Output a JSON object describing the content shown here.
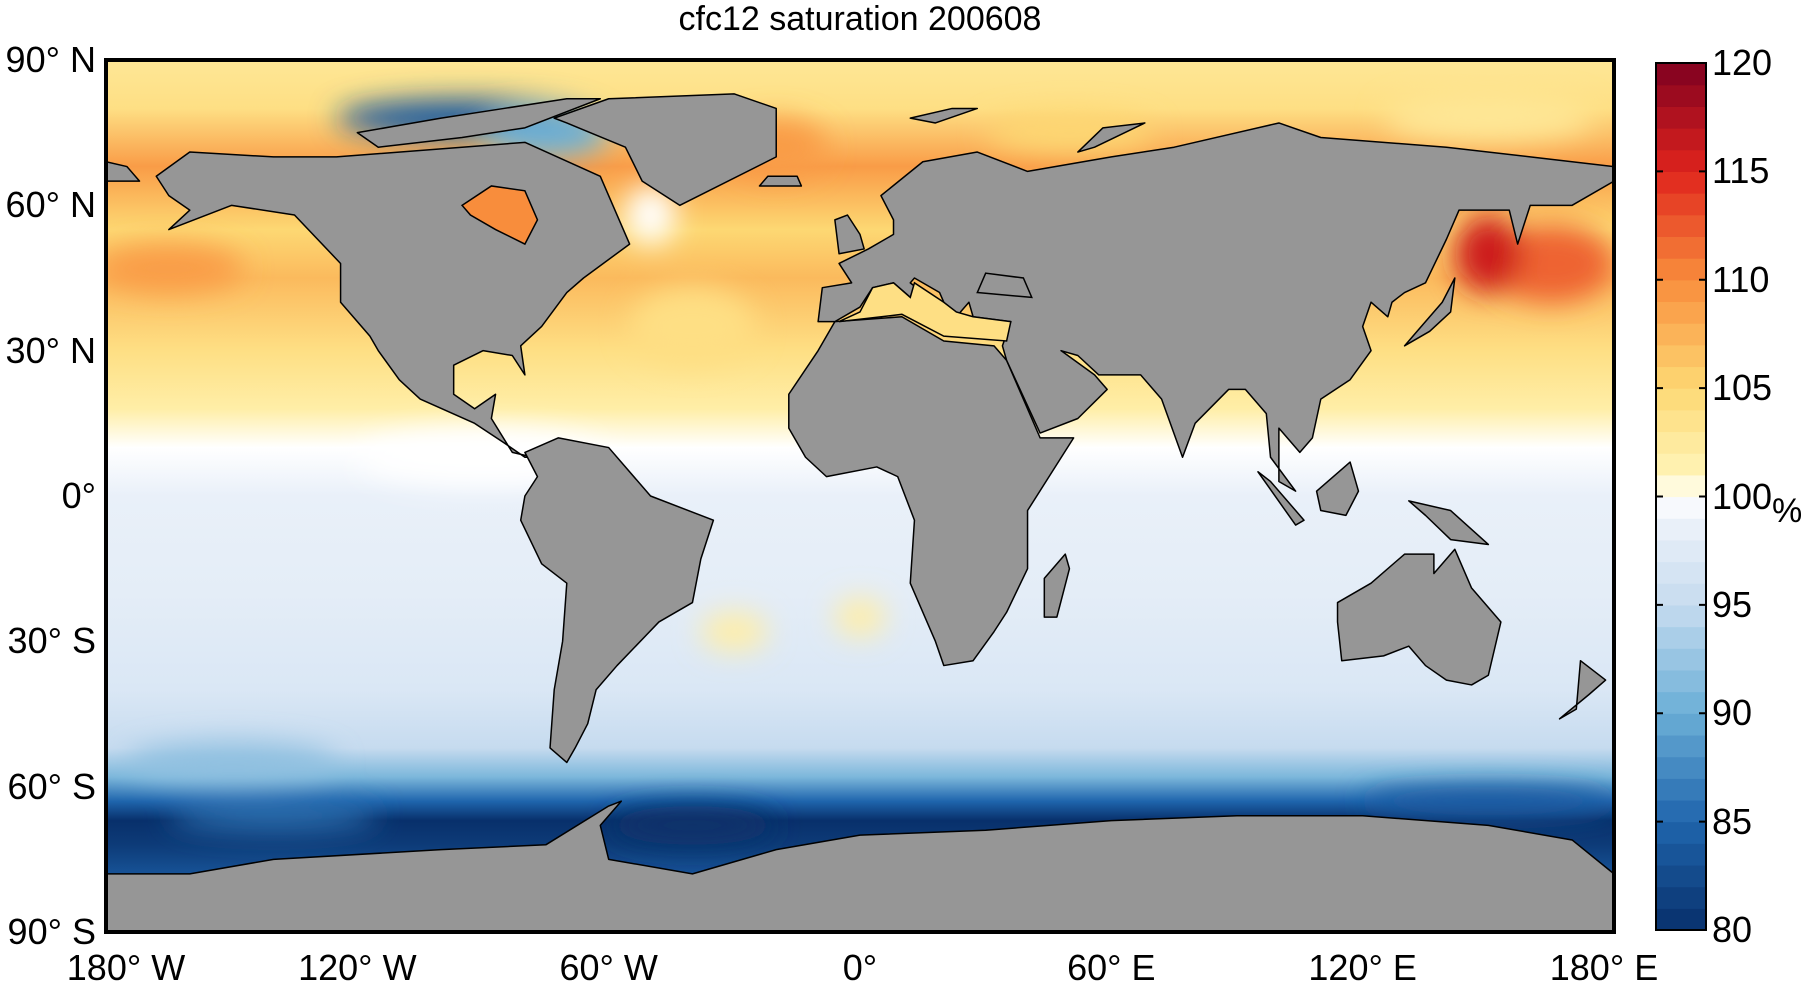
{
  "title": "cfc12 saturation 200608",
  "map": {
    "projection": "equirectangular",
    "land_color": "#969696",
    "coastline_color": "#000000",
    "lat_labels": [
      "90° N",
      "60° N",
      "30° N",
      "0°",
      "30° S",
      "60° S",
      "90° S"
    ],
    "lat_values": [
      90,
      60,
      30,
      0,
      -30,
      -60,
      -90
    ],
    "lon_labels": [
      "180° W",
      "120° W",
      "60° W",
      "0°",
      "60° E",
      "120° E",
      "180° E"
    ],
    "lon_values": [
      -180,
      -120,
      -60,
      0,
      60,
      120,
      180
    ]
  },
  "colorbar": {
    "range": [
      80,
      120
    ],
    "ticks": [
      "120",
      "115",
      "110",
      "105",
      "100",
      "95",
      "90",
      "85",
      "80"
    ],
    "tick_values": [
      120,
      115,
      110,
      105,
      100,
      95,
      90,
      85,
      80
    ],
    "unit": "%",
    "colormap_stops": [
      {
        "v": 80,
        "c": "#08306b"
      },
      {
        "v": 85,
        "c": "#1f65ad"
      },
      {
        "v": 90,
        "c": "#6aaed6"
      },
      {
        "v": 95,
        "c": "#c6dbef"
      },
      {
        "v": 99,
        "c": "#eef3fa"
      },
      {
        "v": 100,
        "c": "#ffffff"
      },
      {
        "v": 101,
        "c": "#fff5b8"
      },
      {
        "v": 105,
        "c": "#fdd873"
      },
      {
        "v": 110,
        "c": "#f88d3c"
      },
      {
        "v": 115,
        "c": "#e0241d"
      },
      {
        "v": 120,
        "c": "#7f0020"
      }
    ]
  }
}
